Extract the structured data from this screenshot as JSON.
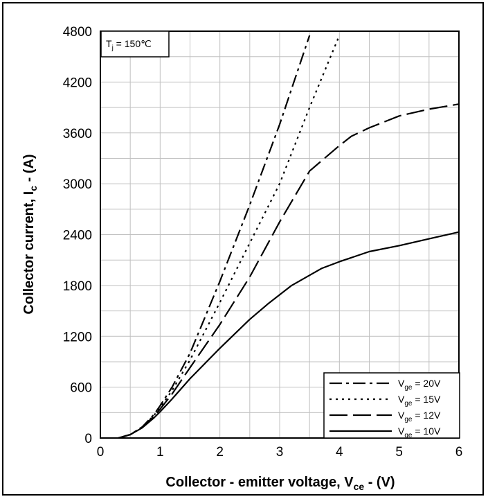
{
  "chart_data": {
    "type": "line",
    "annotation": {
      "base": "T",
      "sub": "j",
      "rest": " = 150℃"
    },
    "xlabel": {
      "base": "Collector - emitter voltage, V",
      "sub": "ce",
      "rest": " - (V)"
    },
    "ylabel": {
      "base": "Collector current, I",
      "sub": "c",
      "rest": " - (A)"
    },
    "xlim": [
      0,
      6
    ],
    "ylim": [
      0,
      4800
    ],
    "xticks": [
      0,
      1,
      2,
      3,
      4,
      5,
      6
    ],
    "yticks": [
      0,
      600,
      1200,
      1800,
      2400,
      3000,
      3600,
      4200,
      4800
    ],
    "grid": true,
    "legend_position": "bottom-right",
    "series": [
      {
        "name": {
          "base": "V",
          "sub": "ge",
          "rest": " = 20V"
        },
        "dash": "dashdot",
        "x": [
          0.3,
          0.5,
          0.7,
          0.9,
          1.0,
          1.2,
          1.5,
          2.0,
          2.5,
          3.0,
          3.5
        ],
        "y": [
          0,
          40,
          130,
          280,
          380,
          600,
          1000,
          1850,
          2750,
          3700,
          4750
        ]
      },
      {
        "name": {
          "base": "V",
          "sub": "ge",
          "rest": " = 15V"
        },
        "dash": "dotted",
        "x": [
          0.3,
          0.5,
          0.7,
          0.9,
          1.0,
          1.2,
          1.5,
          2.0,
          2.5,
          3.0,
          3.5,
          4.0
        ],
        "y": [
          0,
          40,
          125,
          270,
          360,
          560,
          920,
          1600,
          2300,
          3000,
          3900,
          4750
        ]
      },
      {
        "name": {
          "base": "V",
          "sub": "ge",
          "rest": " = 12V"
        },
        "dash": "longdash",
        "x": [
          0.3,
          0.5,
          0.7,
          0.9,
          1.0,
          1.2,
          1.5,
          2.0,
          2.5,
          3.0,
          3.5,
          4.0,
          4.2,
          4.5,
          5.0,
          5.5,
          6.0
        ],
        "y": [
          0,
          40,
          125,
          260,
          340,
          520,
          830,
          1340,
          1900,
          2550,
          3150,
          3450,
          3560,
          3660,
          3800,
          3880,
          3940
        ]
      },
      {
        "name": {
          "base": "V",
          "sub": "ge",
          "rest": " = 10V"
        },
        "dash": "solid",
        "x": [
          0.3,
          0.5,
          0.7,
          0.9,
          1.0,
          1.2,
          1.5,
          2.0,
          2.5,
          2.8,
          3.2,
          3.7,
          4.0,
          4.5,
          5.0,
          5.5,
          6.0
        ],
        "y": [
          0,
          40,
          120,
          240,
          310,
          460,
          700,
          1060,
          1400,
          1580,
          1800,
          2000,
          2080,
          2200,
          2270,
          2350,
          2430
        ]
      }
    ]
  }
}
